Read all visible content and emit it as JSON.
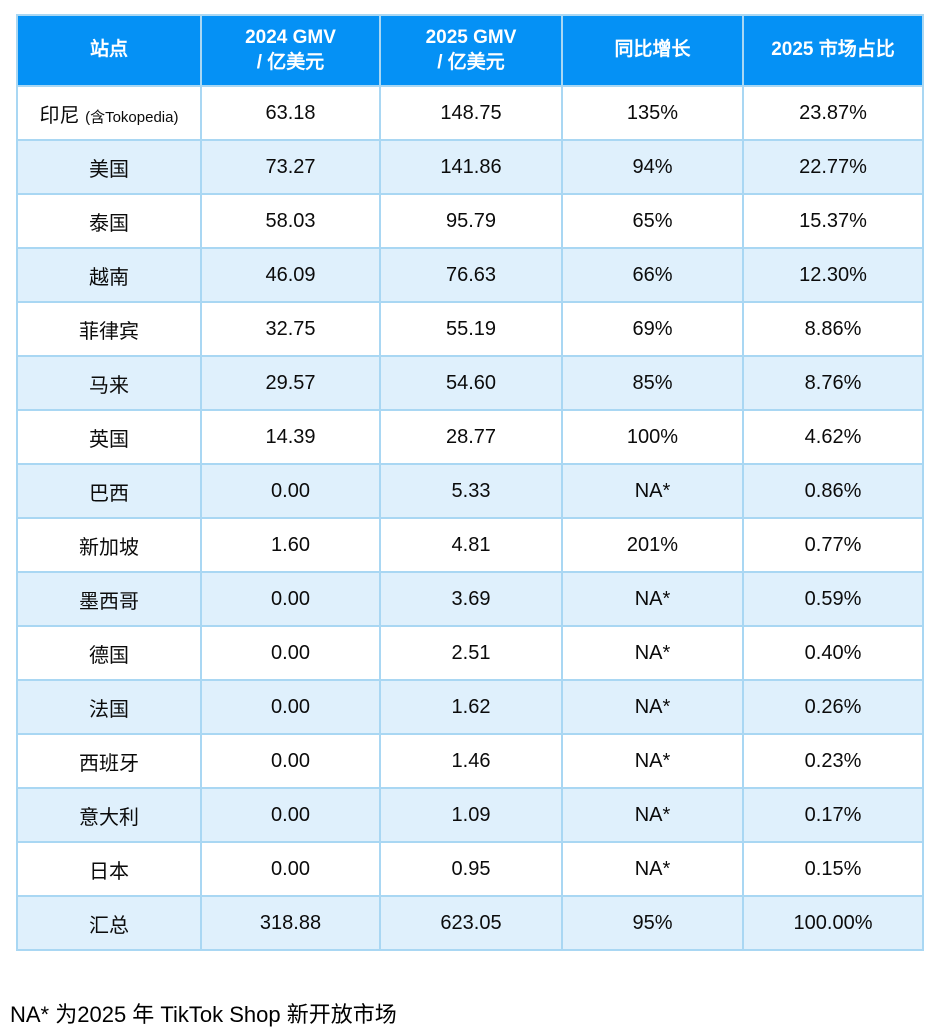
{
  "table": {
    "columns": [
      "站点",
      "2024 GMV\n/ 亿美元",
      "2025 GMV\n/ 亿美元",
      "同比增长",
      "2025 市场占比"
    ],
    "rows": [
      {
        "site": "印尼",
        "site_suffix": "(含Tokopedia)",
        "gmv_2024": "63.18",
        "gmv_2025": "148.75",
        "yoy": "135%",
        "share_2025": "23.87%"
      },
      {
        "site": "美国",
        "site_suffix": "",
        "gmv_2024": "73.27",
        "gmv_2025": "141.86",
        "yoy": "94%",
        "share_2025": "22.77%"
      },
      {
        "site": "泰国",
        "site_suffix": "",
        "gmv_2024": "58.03",
        "gmv_2025": "95.79",
        "yoy": "65%",
        "share_2025": "15.37%"
      },
      {
        "site": "越南",
        "site_suffix": "",
        "gmv_2024": "46.09",
        "gmv_2025": "76.63",
        "yoy": "66%",
        "share_2025": "12.30%"
      },
      {
        "site": "菲律宾",
        "site_suffix": "",
        "gmv_2024": "32.75",
        "gmv_2025": "55.19",
        "yoy": "69%",
        "share_2025": "8.86%"
      },
      {
        "site": "马来",
        "site_suffix": "",
        "gmv_2024": "29.57",
        "gmv_2025": "54.60",
        "yoy": "85%",
        "share_2025": "8.76%"
      },
      {
        "site": "英国",
        "site_suffix": "",
        "gmv_2024": "14.39",
        "gmv_2025": "28.77",
        "yoy": "100%",
        "share_2025": "4.62%"
      },
      {
        "site": "巴西",
        "site_suffix": "",
        "gmv_2024": "0.00",
        "gmv_2025": "5.33",
        "yoy": "NA*",
        "share_2025": "0.86%"
      },
      {
        "site": "新加坡",
        "site_suffix": "",
        "gmv_2024": "1.60",
        "gmv_2025": "4.81",
        "yoy": "201%",
        "share_2025": "0.77%"
      },
      {
        "site": "墨西哥",
        "site_suffix": "",
        "gmv_2024": "0.00",
        "gmv_2025": "3.69",
        "yoy": "NA*",
        "share_2025": "0.59%"
      },
      {
        "site": "德国",
        "site_suffix": "",
        "gmv_2024": "0.00",
        "gmv_2025": "2.51",
        "yoy": "NA*",
        "share_2025": "0.40%"
      },
      {
        "site": "法国",
        "site_suffix": "",
        "gmv_2024": "0.00",
        "gmv_2025": "1.62",
        "yoy": "NA*",
        "share_2025": "0.26%"
      },
      {
        "site": "西班牙",
        "site_suffix": "",
        "gmv_2024": "0.00",
        "gmv_2025": "1.46",
        "yoy": "NA*",
        "share_2025": "0.23%"
      },
      {
        "site": "意大利",
        "site_suffix": "",
        "gmv_2024": "0.00",
        "gmv_2025": "1.09",
        "yoy": "NA*",
        "share_2025": "0.17%"
      },
      {
        "site": "日本",
        "site_suffix": "",
        "gmv_2024": "0.00",
        "gmv_2025": "0.95",
        "yoy": "NA*",
        "share_2025": "0.15%"
      },
      {
        "site": "汇总",
        "site_suffix": "",
        "gmv_2024": "318.88",
        "gmv_2025": "623.05",
        "yoy": "95%",
        "share_2025": "100.00%",
        "is_total": true
      }
    ]
  },
  "footnote": "NA* 为2025 年 TikTok Shop 新开放市场",
  "colors": {
    "header_bg": "#0591F5",
    "header_text": "#FFFFFF",
    "row_alt_bg": "#DFF0FC",
    "border": "#A9D7F3",
    "body_text": "#0B0B0B"
  },
  "chart_data": {
    "type": "table",
    "title": "",
    "columns": [
      "站点",
      "2024 GMV / 亿美元",
      "2025 GMV / 亿美元",
      "同比增长",
      "2025 市场占比"
    ],
    "rows": [
      [
        "印尼 (含Tokopedia)",
        63.18,
        148.75,
        "135%",
        "23.87%"
      ],
      [
        "美国",
        73.27,
        141.86,
        "94%",
        "22.77%"
      ],
      [
        "泰国",
        58.03,
        95.79,
        "65%",
        "15.37%"
      ],
      [
        "越南",
        46.09,
        76.63,
        "66%",
        "12.30%"
      ],
      [
        "菲律宾",
        32.75,
        55.19,
        "69%",
        "8.86%"
      ],
      [
        "马来",
        29.57,
        54.6,
        "85%",
        "8.76%"
      ],
      [
        "英国",
        14.39,
        28.77,
        "100%",
        "4.62%"
      ],
      [
        "巴西",
        0.0,
        5.33,
        "NA*",
        "0.86%"
      ],
      [
        "新加坡",
        1.6,
        4.81,
        "201%",
        "0.77%"
      ],
      [
        "墨西哥",
        0.0,
        3.69,
        "NA*",
        "0.59%"
      ],
      [
        "德国",
        0.0,
        2.51,
        "NA*",
        "0.40%"
      ],
      [
        "法国",
        0.0,
        1.62,
        "NA*",
        "0.26%"
      ],
      [
        "西班牙",
        0.0,
        1.46,
        "NA*",
        "0.23%"
      ],
      [
        "意大利",
        0.0,
        1.09,
        "NA*",
        "0.17%"
      ],
      [
        "日本",
        0.0,
        0.95,
        "NA*",
        "0.15%"
      ],
      [
        "汇总",
        318.88,
        623.05,
        "95%",
        "100.00%"
      ]
    ],
    "footnote": "NA* 为2025 年 TikTok Shop 新开放市场",
    "layout_hints": {
      "header_style": "blue background, white bold text",
      "row_striping": "odd rows white, even rows light blue",
      "alignment": "all cells centered"
    }
  }
}
